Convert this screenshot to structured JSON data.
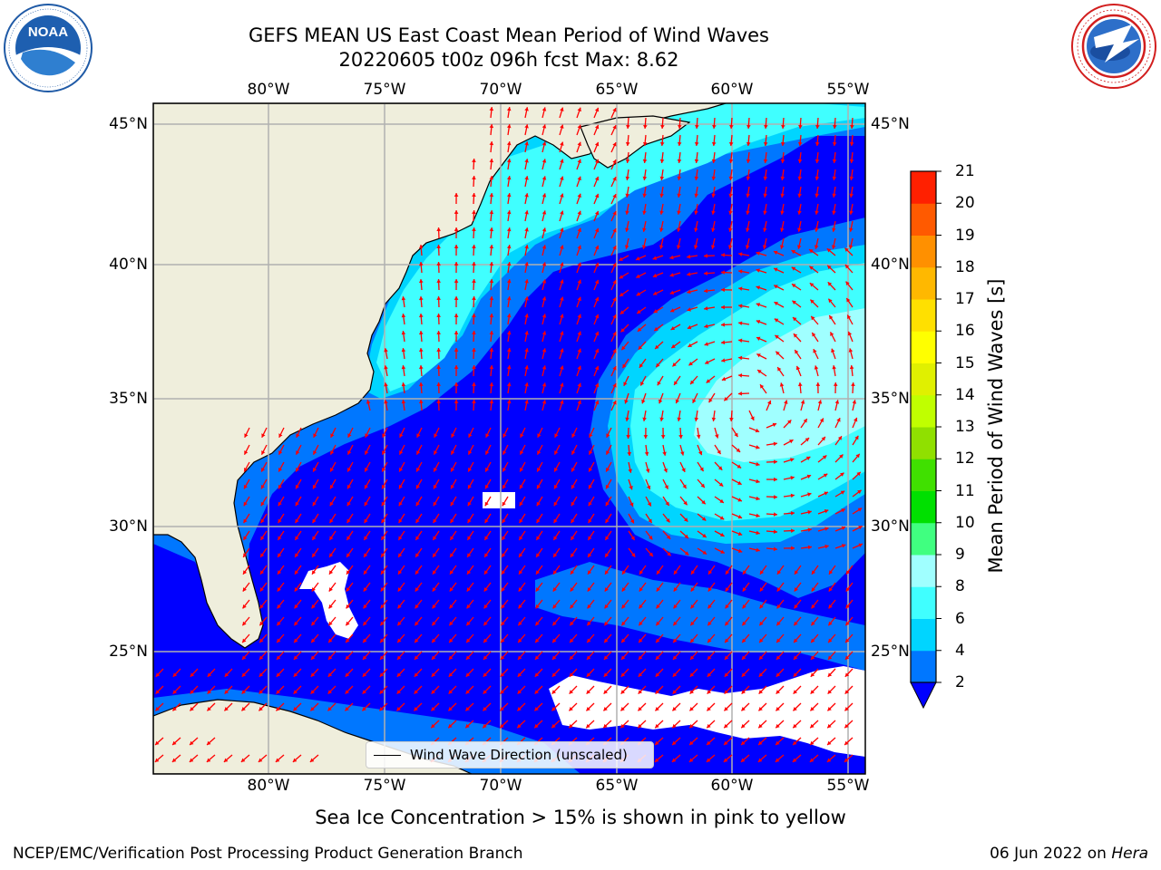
{
  "title": {
    "line1": "GEFS MEAN US East Coast Mean Period of Wind Waves",
    "line2": "20220605 t00z 096h fcst   Max: 8.62"
  },
  "logos": {
    "left": {
      "icon": "noaa-logo",
      "text": "NOAA",
      "ring_text": "NATIONAL OCEANIC AND ATMOSPHERIC ADMINISTRATION · U.S. DEPARTMENT OF COMMERCE"
    },
    "right": {
      "icon": "nws-logo",
      "ring_text": "NATIONAL WEATHER SERVICE"
    }
  },
  "map": {
    "lon_ticks": [
      "80°W",
      "75°W",
      "70°W",
      "65°W",
      "60°W",
      "55°W"
    ],
    "lat_ticks": [
      "45°N",
      "40°N",
      "35°N",
      "30°N",
      "25°N"
    ],
    "projection": "Plate Carrée",
    "lon_range": [
      -85,
      -54.3
    ],
    "lat_range": [
      20.5,
      46
    ],
    "gridlines": true,
    "land_color": "#efeedc",
    "arrow_color": "#ff0000"
  },
  "colorbar": {
    "label": "Mean Period of Wind Waves [s]",
    "ticks": [
      "2",
      "4",
      "6",
      "8",
      "9",
      "10",
      "11",
      "12",
      "13",
      "14",
      "15",
      "16",
      "17",
      "18",
      "19",
      "20",
      "21"
    ],
    "colors": [
      "#0077ff",
      "#00d5ff",
      "#40ffff",
      "#a0ffff",
      "#40ff80",
      "#00e000",
      "#40e000",
      "#90e000",
      "#c0ff00",
      "#e0f000",
      "#ffff00",
      "#ffe000",
      "#ffb800",
      "#ff9000",
      "#ff5a00",
      "#ff2000"
    ],
    "below_color": "#0000ff",
    "extend": "min"
  },
  "legend": {
    "label": "Wind Wave Direction (unscaled)"
  },
  "note": "Sea Ice Concentration > 15% is shown in pink to yellow",
  "footer": {
    "left": "NCEP/EMC/Verification Post Processing Product Generation Branch",
    "date": "06 Jun 2022 on ",
    "machine": "Hera"
  }
}
